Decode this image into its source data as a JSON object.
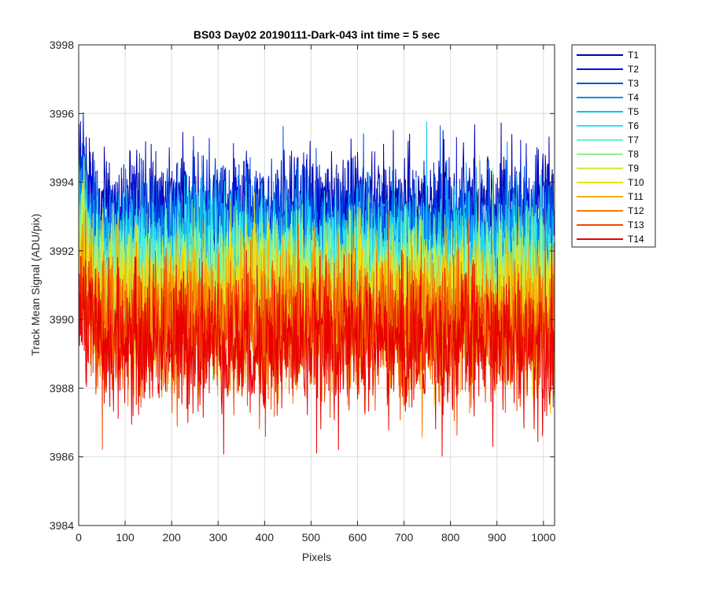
{
  "chart_data": {
    "type": "line",
    "title": "BS03 Day02 20190111-Dark-043 int time = 5 sec",
    "xlabel": "Pixels",
    "ylabel": "Track Mean Signal (ADU/pix)",
    "xlim": [
      0,
      1024
    ],
    "ylim": [
      3984,
      3998
    ],
    "xticks": [
      0,
      100,
      200,
      300,
      400,
      500,
      600,
      700,
      800,
      900,
      1000
    ],
    "yticks": [
      3984,
      3986,
      3988,
      3990,
      3992,
      3994,
      3996,
      3998
    ],
    "grid": true,
    "legend_position": "outside-top-right",
    "note": "Each series is a noisy per-pixel trace; baseline is the approximate mean level and noise the approximate spread read from the plot.",
    "series": [
      {
        "name": "T1",
        "color": "#0000aa",
        "baseline": 3993.2,
        "noise": 0.85
      },
      {
        "name": "T2",
        "color": "#0010d6",
        "baseline": 3992.9,
        "noise": 0.85
      },
      {
        "name": "T3",
        "color": "#0050e8",
        "baseline": 3992.6,
        "noise": 0.85
      },
      {
        "name": "T4",
        "color": "#0a8cf0",
        "baseline": 3992.2,
        "noise": 0.9
      },
      {
        "name": "T5",
        "color": "#10c0f2",
        "baseline": 3991.9,
        "noise": 0.9
      },
      {
        "name": "T6",
        "color": "#30e6ea",
        "baseline": 3991.6,
        "noise": 0.9
      },
      {
        "name": "T7",
        "color": "#66f2c8",
        "baseline": 3991.3,
        "noise": 0.95
      },
      {
        "name": "T8",
        "color": "#90f090",
        "baseline": 3991.0,
        "noise": 0.95
      },
      {
        "name": "T9",
        "color": "#c8f044",
        "baseline": 3990.8,
        "noise": 0.95
      },
      {
        "name": "T10",
        "color": "#f0e010",
        "baseline": 3990.5,
        "noise": 1.0
      },
      {
        "name": "T11",
        "color": "#f5b000",
        "baseline": 3990.2,
        "noise": 1.0
      },
      {
        "name": "T12",
        "color": "#f57a00",
        "baseline": 3989.9,
        "noise": 1.0
      },
      {
        "name": "T13",
        "color": "#f04a00",
        "baseline": 3989.6,
        "noise": 1.0
      },
      {
        "name": "T14",
        "color": "#e80000",
        "baseline": 3989.3,
        "noise": 1.05
      }
    ]
  }
}
